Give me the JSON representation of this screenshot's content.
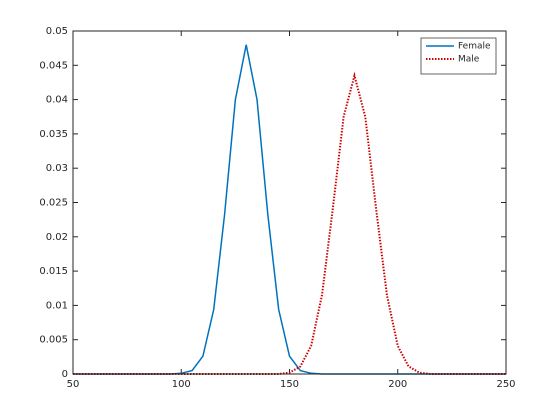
{
  "chart_data": {
    "type": "line",
    "x": [
      50,
      55,
      60,
      65,
      70,
      75,
      80,
      85,
      90,
      95,
      100,
      105,
      110,
      115,
      120,
      125,
      130,
      135,
      140,
      145,
      150,
      155,
      160,
      165,
      170,
      175,
      180,
      185,
      190,
      195,
      200,
      205,
      210,
      215,
      220,
      225,
      230,
      235,
      240,
      245,
      250
    ],
    "series": [
      {
        "name": "Female",
        "color": "#0072bd",
        "style": "solid",
        "values": [
          0,
          0,
          0,
          0,
          0,
          0,
          0,
          0,
          0,
          0,
          0.0001,
          0.0005,
          0.0026,
          0.0094,
          0.0232,
          0.04,
          0.048,
          0.04,
          0.0232,
          0.0094,
          0.0026,
          0.0005,
          0.0001,
          0,
          0,
          0,
          0,
          0,
          0,
          0,
          0,
          0,
          0,
          0,
          0,
          0,
          0,
          0,
          0,
          0,
          0
        ]
      },
      {
        "name": "Male",
        "color": "#d00000",
        "style": "dotted",
        "values": [
          0,
          0,
          0,
          0,
          0,
          0,
          0,
          0,
          0,
          0,
          0,
          0,
          0,
          0,
          0,
          0,
          0,
          0,
          0,
          0,
          0.0002,
          0.0011,
          0.0041,
          0.0115,
          0.0241,
          0.0375,
          0.0435,
          0.0375,
          0.0241,
          0.0115,
          0.0041,
          0.0011,
          0.0002,
          0,
          0,
          0,
          0,
          0,
          0,
          0,
          0
        ]
      }
    ],
    "xlim": [
      50,
      250
    ],
    "xticks": [
      50,
      100,
      150,
      200,
      250
    ],
    "ylim": [
      0,
      0.05
    ],
    "yticks": [
      0,
      0.005,
      0.01,
      0.015,
      0.02,
      0.025,
      0.03,
      0.035,
      0.04,
      0.045,
      0.05
    ],
    "grid": false,
    "legend": "top-right"
  }
}
